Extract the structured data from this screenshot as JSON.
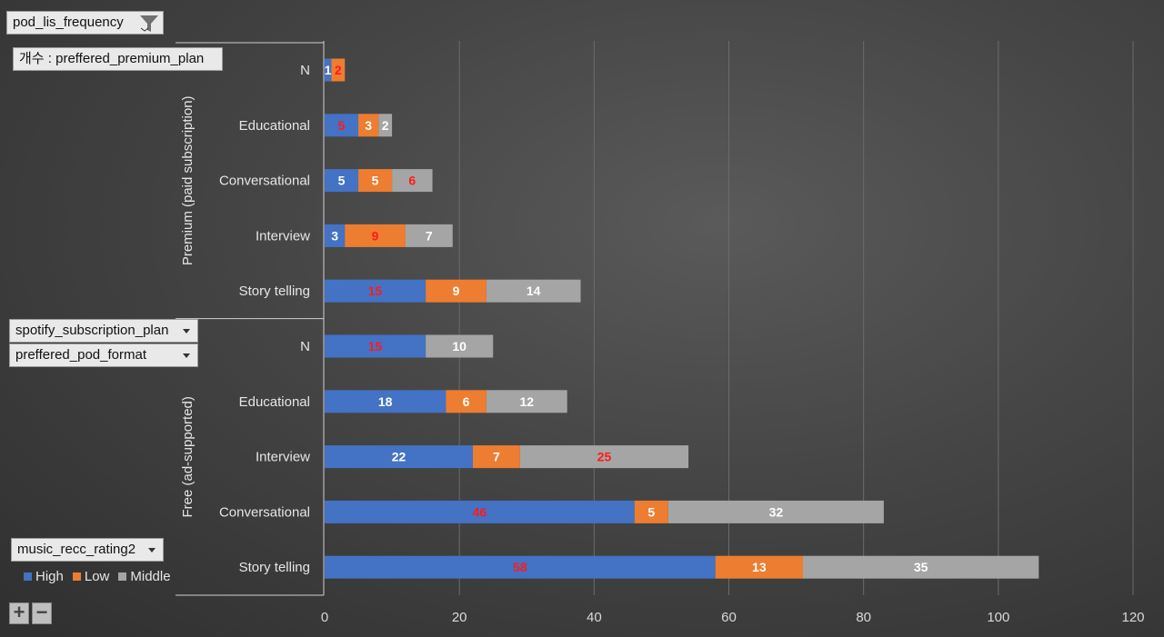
{
  "fields": {
    "filter_field": "pod_lis_frequency",
    "value_field": "개수 : preffered_premium_plan",
    "row_field_1": "spotify_subscription_plan",
    "row_field_2": "preffered_pod_format",
    "legend_field": "music_recc_rating2"
  },
  "colors": {
    "High": "#4472c4",
    "Low": "#ed7d31",
    "Middle": "#a5a5a5",
    "label_light": "#ffffff",
    "label_red": "#ff1a1a"
  },
  "icons": [
    "filter-icon",
    "chevron-down-icon",
    "plus-icon",
    "minus-icon"
  ],
  "zoom": {
    "expand_label": "+",
    "collapse_label": "−"
  },
  "chart_data": {
    "type": "bar",
    "orientation": "horizontal",
    "stacked": true,
    "xlim": [
      0,
      120
    ],
    "x_ticks": [
      0,
      20,
      40,
      60,
      80,
      100,
      120
    ],
    "grid": true,
    "legend_position": "bottom-left",
    "series": [
      {
        "name": "High",
        "color": "#4472c4"
      },
      {
        "name": "Low",
        "color": "#ed7d31"
      },
      {
        "name": "Middle",
        "color": "#a5a5a5"
      }
    ],
    "groups": [
      {
        "name": "Premium (paid subscription)",
        "rows": [
          {
            "category": "N",
            "values": [
              1,
              2,
              0
            ],
            "label_red": [
              false,
              true,
              false
            ]
          },
          {
            "category": "Educational",
            "values": [
              5,
              3,
              2
            ],
            "label_red": [
              true,
              false,
              false
            ]
          },
          {
            "category": "Conversational",
            "values": [
              5,
              5,
              6
            ],
            "label_red": [
              false,
              false,
              true
            ]
          },
          {
            "category": "Interview",
            "values": [
              3,
              9,
              7
            ],
            "label_red": [
              false,
              true,
              false
            ]
          },
          {
            "category": "Story telling",
            "values": [
              15,
              9,
              14
            ],
            "label_red": [
              true,
              false,
              false
            ]
          }
        ]
      },
      {
        "name": "Free (ad-supported)",
        "rows": [
          {
            "category": "N",
            "values": [
              15,
              0,
              10
            ],
            "label_red": [
              true,
              false,
              false
            ]
          },
          {
            "category": "Educational",
            "values": [
              18,
              6,
              12
            ],
            "label_red": [
              false,
              false,
              false
            ]
          },
          {
            "category": "Interview",
            "values": [
              22,
              7,
              25
            ],
            "label_red": [
              false,
              false,
              true
            ]
          },
          {
            "category": "Conversational",
            "values": [
              46,
              5,
              32
            ],
            "label_red": [
              true,
              false,
              false
            ]
          },
          {
            "category": "Story telling",
            "values": [
              58,
              13,
              35
            ],
            "label_red": [
              true,
              false,
              false
            ]
          }
        ]
      }
    ]
  }
}
